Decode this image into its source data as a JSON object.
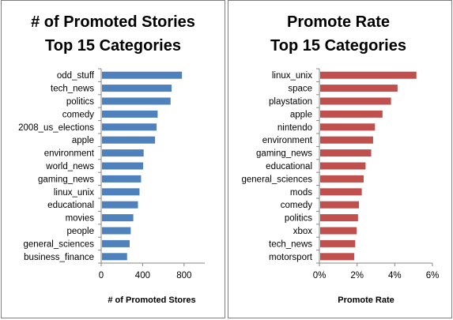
{
  "chart_data": [
    {
      "type": "bar",
      "orientation": "horizontal",
      "title": [
        "# of Promoted Stories",
        "Top 15 Categories"
      ],
      "xlabel": "# of Promoted Stores",
      "xlim": [
        0,
        1000
      ],
      "xticks": [
        0,
        400,
        800
      ],
      "tick_labels": [
        "0",
        "400",
        "800"
      ],
      "bar_color": "#4f81bd",
      "gridlines": false,
      "categories": [
        "odd_stuff",
        "tech_news",
        "politics",
        "comedy",
        "2008_us_elections",
        "apple",
        "environment",
        "world_news",
        "gaming_news",
        "linux_unix",
        "educational",
        "movies",
        "people",
        "general_sciences",
        "business_finance"
      ],
      "values": [
        780,
        680,
        670,
        545,
        535,
        520,
        410,
        405,
        385,
        370,
        355,
        310,
        285,
        275,
        250
      ]
    },
    {
      "type": "bar",
      "orientation": "horizontal",
      "title": [
        "Promote Rate",
        "Top 15 Categories"
      ],
      "xlabel": "Promote Rate",
      "xlim": [
        0,
        0.06
      ],
      "xticks": [
        0,
        0.02,
        0.04,
        0.06
      ],
      "tick_labels": [
        "0%",
        "2%",
        "4%",
        "6%"
      ],
      "bar_color": "#c0504d",
      "gridlines": false,
      "categories": [
        "linux_unix",
        "space",
        "playstation",
        "apple",
        "nintendo",
        "environment",
        "gaming_news",
        "educational",
        "general_sciences",
        "mods",
        "comedy",
        "politics",
        "xbox",
        "tech_news",
        "motorsport"
      ],
      "values": [
        0.0515,
        0.0415,
        0.038,
        0.0335,
        0.0295,
        0.0285,
        0.0275,
        0.0245,
        0.0235,
        0.0225,
        0.021,
        0.0205,
        0.0198,
        0.019,
        0.0185
      ]
    }
  ]
}
